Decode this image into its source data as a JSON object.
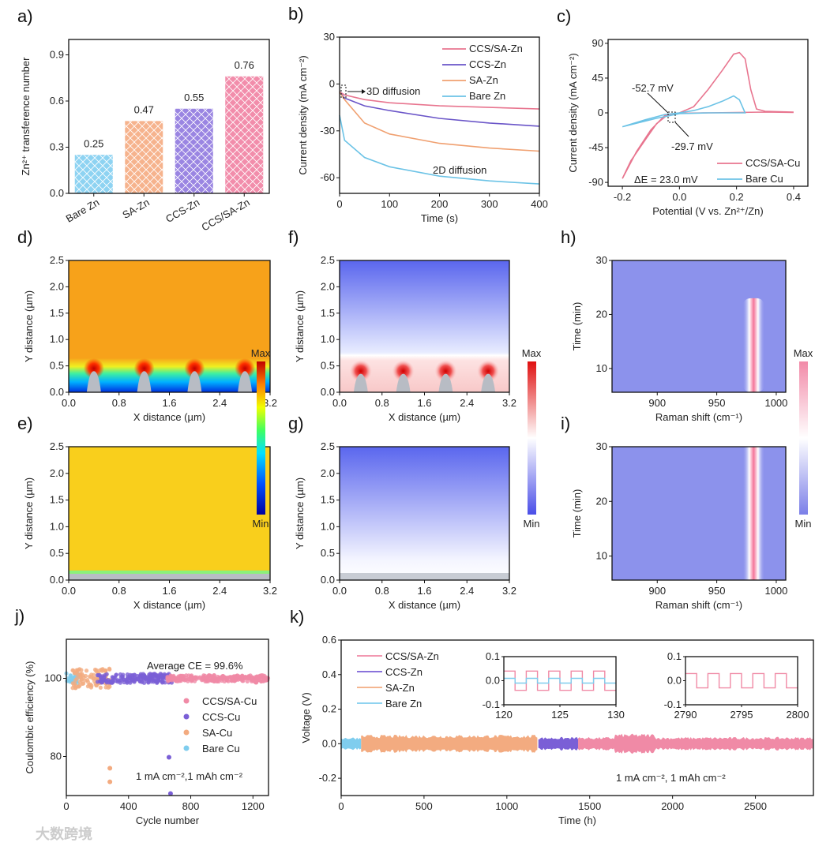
{
  "watermark": "大数跨境",
  "chart_data": [
    {
      "panel": "a)",
      "type": "bar",
      "ylabel": "Zn²⁺ transference number",
      "ylim": [
        0,
        1.0
      ],
      "yticks": [
        "0.0",
        "0.3",
        "0.6",
        "0.9"
      ],
      "categories": [
        "Bare Zn",
        "SA-Zn",
        "CCS-Zn",
        "CCS/SA-Zn"
      ],
      "values": [
        0.25,
        0.47,
        0.55,
        0.76
      ],
      "labels": [
        "0.25",
        "0.47",
        "0.55",
        "0.76"
      ],
      "colors": [
        "#8ed3f2",
        "#f6b38d",
        "#9a85e2",
        "#f28dab"
      ]
    },
    {
      "panel": "b)",
      "type": "line",
      "xlabel": "Time (s)",
      "ylabel": "Current density (mA cm⁻²)",
      "xlim": [
        0,
        400
      ],
      "ylim": [
        -70,
        30
      ],
      "xticks": [
        "0",
        "100",
        "200",
        "300",
        "400"
      ],
      "yticks": [
        "-60",
        "-30",
        "0",
        "30"
      ],
      "x": [
        0,
        10,
        50,
        100,
        200,
        300,
        400
      ],
      "series": [
        {
          "name": "CCS/SA-Zn",
          "color": "#e8758f",
          "values": [
            -5,
            -7,
            -10,
            -12,
            -14,
            -15,
            -16
          ]
        },
        {
          "name": "CCS-Zn",
          "color": "#6a55c8",
          "values": [
            -5,
            -9,
            -14,
            -17,
            -22,
            -25,
            -27
          ]
        },
        {
          "name": "SA-Zn",
          "color": "#f0a070",
          "values": [
            -5,
            -10,
            -25,
            -32,
            -38,
            -41,
            -43
          ]
        },
        {
          "name": "Bare Zn",
          "color": "#6cc3e6",
          "values": [
            -20,
            -36,
            -47,
            -53,
            -59,
            -62,
            -64
          ]
        }
      ],
      "annotations": [
        "3D diffusion",
        "2D diffusion"
      ]
    },
    {
      "panel": "c)",
      "type": "line",
      "xlabel": "Potential (V vs. Zn²⁺/Zn)",
      "ylabel": "Current density (mA cm⁻²)",
      "xlim": [
        -0.25,
        0.45
      ],
      "ylim": [
        -95,
        95
      ],
      "xticks": [
        "-0.2",
        "0.0",
        "0.2",
        "0.4"
      ],
      "yticks": [
        "-90",
        "-45",
        "0",
        "45",
        "90"
      ],
      "series": [
        {
          "name": "CCS/SA-Cu",
          "color": "#e8758f",
          "points": [
            [
              0.4,
              0.5
            ],
            [
              0.3,
              1
            ],
            [
              0.2,
              0.5
            ],
            [
              0.1,
              0
            ],
            [
              0.0,
              -0.5
            ],
            [
              -0.05,
              -3
            ],
            [
              -0.1,
              -22
            ],
            [
              -0.15,
              -50
            ],
            [
              -0.2,
              -85
            ],
            [
              -0.17,
              -62
            ],
            [
              -0.12,
              -35
            ],
            [
              -0.08,
              -14
            ],
            [
              -0.04,
              -2
            ],
            [
              0.0,
              0
            ],
            [
              0.05,
              8
            ],
            [
              0.1,
              30
            ],
            [
              0.15,
              55
            ],
            [
              0.19,
              76
            ],
            [
              0.21,
              78
            ],
            [
              0.23,
              70
            ],
            [
              0.25,
              30
            ],
            [
              0.27,
              5
            ],
            [
              0.3,
              2
            ],
            [
              0.4,
              1
            ]
          ]
        },
        {
          "name": "Bare Cu",
          "color": "#6cc3e6",
          "points": [
            [
              -0.2,
              -18
            ],
            [
              -0.12,
              -9
            ],
            [
              -0.05,
              -2
            ],
            [
              0.0,
              0
            ],
            [
              0.05,
              3
            ],
            [
              0.1,
              8
            ],
            [
              0.15,
              15
            ],
            [
              0.19,
              22
            ],
            [
              0.21,
              17
            ],
            [
              0.23,
              0
            ],
            [
              0.1,
              0
            ],
            [
              0.0,
              -1
            ],
            [
              -0.08,
              -7
            ],
            [
              -0.2,
              -18
            ]
          ]
        }
      ],
      "annotations": [
        "-52.7 mV",
        "-29.7 mV",
        "ΔE = 23.0 mV"
      ]
    },
    {
      "panel": "d)",
      "type": "heatmap",
      "style": "jet-deposit",
      "xlabel": "X distance (µm)",
      "ylabel": "Y distance (µm)",
      "xlim": [
        0,
        3.2
      ],
      "ylim": [
        0,
        2.5
      ],
      "xticks": [
        "0.0",
        "0.8",
        "1.6",
        "2.4",
        "3.2"
      ],
      "yticks": [
        "0.0",
        "0.5",
        "1.0",
        "1.5",
        "2.0",
        "2.5"
      ]
    },
    {
      "panel": "e)",
      "type": "heatmap",
      "style": "jet-flat",
      "xlabel": "X distance (µm)",
      "ylabel": "Y distance (µm)",
      "xlim": [
        0,
        3.2
      ],
      "ylim": [
        0,
        2.5
      ],
      "xticks": [
        "0.0",
        "0.8",
        "1.6",
        "2.4",
        "3.2"
      ],
      "yticks": [
        "0.0",
        "0.5",
        "1.0",
        "1.5",
        "2.0",
        "2.5"
      ],
      "colorbar": {
        "max": "Max",
        "min": "Min"
      }
    },
    {
      "panel": "f)",
      "type": "heatmap",
      "style": "bwr-deposit",
      "xlabel": "X distance (µm)",
      "ylabel": "Y distance (µm)",
      "xlim": [
        0,
        3.2
      ],
      "ylim": [
        0,
        2.5
      ],
      "xticks": [
        "0.0",
        "0.8",
        "1.6",
        "2.4",
        "3.2"
      ],
      "yticks": [
        "0.0",
        "0.5",
        "1.0",
        "1.5",
        "2.0",
        "2.5"
      ]
    },
    {
      "panel": "g)",
      "type": "heatmap",
      "style": "bwr-flat",
      "xlabel": "X distance (µm)",
      "ylabel": "Y distance (µm)",
      "xlim": [
        0,
        3.2
      ],
      "ylim": [
        0,
        2.5
      ],
      "xticks": [
        "0.0",
        "0.8",
        "1.6",
        "2.4",
        "3.2"
      ],
      "yticks": [
        "0.0",
        "0.5",
        "1.0",
        "1.5",
        "2.0",
        "2.5"
      ],
      "colorbar": {
        "max": "Max",
        "min": "Min"
      }
    },
    {
      "panel": "h)",
      "type": "heatmap",
      "style": "raman-partial",
      "xlabel": "Raman shift (cm⁻¹)",
      "ylabel": "Time (min)",
      "xlim": [
        862,
        1008
      ],
      "ylim": [
        5.6,
        30
      ],
      "xticks": [
        "900",
        "950",
        "1000"
      ],
      "yticks": [
        "10",
        "20",
        "30"
      ],
      "peak": {
        "shift": 981,
        "time_end": 23
      }
    },
    {
      "panel": "i)",
      "type": "heatmap",
      "style": "raman-full",
      "xlabel": "Raman shift (cm⁻¹)",
      "ylabel": "Time (min)",
      "xlim": [
        862,
        1008
      ],
      "ylim": [
        5.6,
        30
      ],
      "xticks": [
        "900",
        "950",
        "1000"
      ],
      "yticks": [
        "10",
        "20",
        "30"
      ],
      "peak": {
        "shift": 981,
        "time_end": 30
      },
      "colorbar": {
        "max": "Max",
        "min": "Min"
      }
    },
    {
      "panel": "j)",
      "type": "scatter",
      "xlabel": "Cycle number",
      "ylabel": "Coulombic efficiency (%)",
      "xlim": [
        0,
        1300
      ],
      "ylim": [
        70,
        110
      ],
      "xticks": [
        "0",
        "400",
        "800",
        "1200"
      ],
      "yticks": [
        "80",
        "100"
      ],
      "series": [
        {
          "name": "CCS/SA-Cu",
          "color": "#f08aa6",
          "range": [
            650,
            1300
          ],
          "spread": 0.8,
          "outliers": [
            [
              1220,
              99
            ]
          ]
        },
        {
          "name": "CCS-Cu",
          "color": "#7a5fd6",
          "range": [
            200,
            680
          ],
          "spread": 1.2,
          "outliers": [
            [
              660,
              79.8
            ],
            [
              670,
              70.5
            ]
          ]
        },
        {
          "name": "SA-Cu",
          "color": "#f3ab80",
          "range": [
            40,
            280
          ],
          "spread": 2.5,
          "outliers": [
            [
              280,
              77
            ],
            [
              280,
              73.5
            ]
          ]
        },
        {
          "name": "Bare Cu",
          "color": "#7fcdee",
          "range": [
            0,
            80
          ],
          "spread": 1.5,
          "outliers": []
        }
      ],
      "annotations": [
        "Average CE = 99.6%",
        "1 mA cm⁻²,1 mAh cm⁻²"
      ]
    },
    {
      "panel": "k)",
      "type": "area",
      "xlabel": "Time (h)",
      "ylabel": "Voltage (V)",
      "xlim": [
        0,
        2850
      ],
      "ylim": [
        -0.3,
        0.6
      ],
      "xticks": [
        "0",
        "500",
        "1000",
        "1500",
        "2000",
        "2500"
      ],
      "yticks": [
        "-0.2",
        "0.0",
        "0.2",
        "0.4",
        "0.6"
      ],
      "series": [
        {
          "name": "CCS/SA-Zn",
          "color": "#f08aa6",
          "range": [
            1430,
            2850
          ],
          "amplitude": 0.03
        },
        {
          "name": "CCS-Zn",
          "color": "#7a5fd6",
          "range": [
            1190,
            1430
          ],
          "amplitude": 0.03
        },
        {
          "name": "SA-Zn",
          "color": "#f3ab80",
          "range": [
            120,
            1190
          ],
          "amplitude": 0.04
        },
        {
          "name": "Bare Zn",
          "color": "#7fcdee",
          "range": [
            0,
            120
          ],
          "amplitude": 0.03
        }
      ],
      "insets": [
        {
          "xlim": [
            120,
            130
          ],
          "ylim": [
            -0.1,
            0.1
          ],
          "xticks": [
            "120",
            "125",
            "130"
          ],
          "yticks": [
            "-0.1",
            "0.0",
            "0.1"
          ],
          "period": 2,
          "series": [
            {
              "name": "CCS/SA-Zn",
              "amp": 0.04
            },
            {
              "name": "Bare Zn",
              "amp": 0.01
            }
          ]
        },
        {
          "xlim": [
            2790,
            2800
          ],
          "ylim": [
            -0.1,
            0.1
          ],
          "xticks": [
            "2790",
            "2795",
            "2800"
          ],
          "yticks": [
            "-0.1",
            "0.0",
            "0.1"
          ],
          "period": 2,
          "series": [
            {
              "name": "CCS/SA-Zn",
              "amp": 0.03
            }
          ]
        }
      ],
      "annotations": [
        "1 mA cm⁻², 1 mAh cm⁻²"
      ]
    }
  ]
}
